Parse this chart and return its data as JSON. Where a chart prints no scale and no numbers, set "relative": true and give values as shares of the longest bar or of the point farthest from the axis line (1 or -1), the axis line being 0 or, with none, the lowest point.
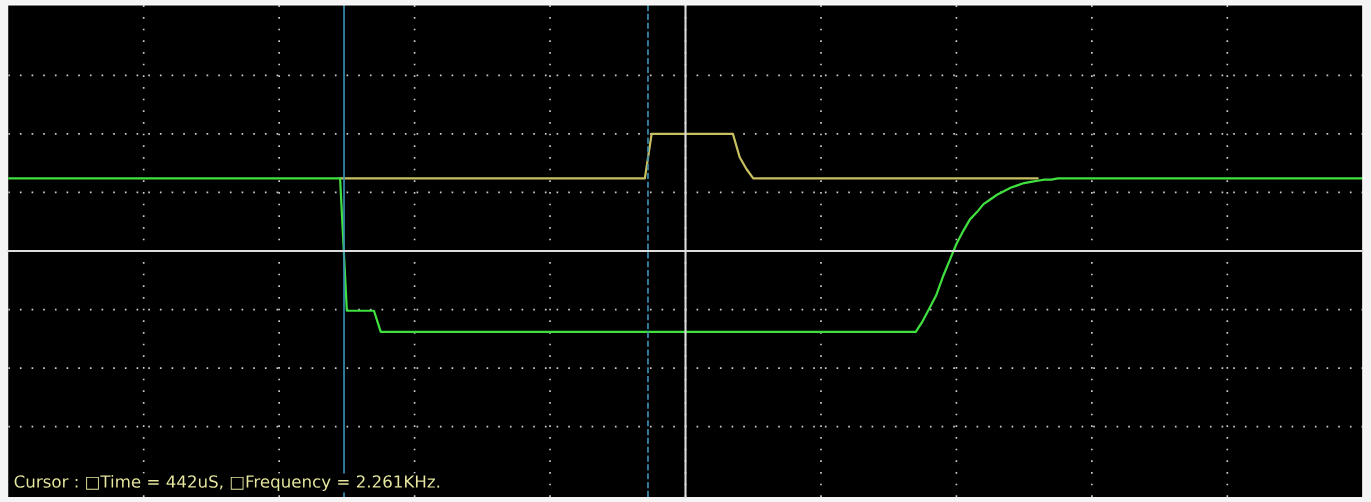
{
  "chart_data": {
    "type": "line",
    "relative": true,
    "categories": [
      null,
      null,
      null,
      null,
      null,
      null,
      null,
      null,
      null,
      null,
      null,
      null,
      null,
      null,
      null,
      null,
      null,
      null,
      null,
      null,
      null,
      null,
      null,
      null,
      null,
      null,
      null,
      null,
      null,
      null,
      null,
      null,
      null,
      null,
      null,
      null,
      null,
      null,
      null,
      null,
      null,
      null,
      null,
      null,
      null,
      null,
      null,
      null,
      null,
      null,
      null,
      null,
      null,
      null,
      null,
      null,
      null,
      null,
      null,
      null,
      null,
      null,
      null,
      null,
      null,
      null,
      null,
      null,
      null,
      null,
      null,
      null,
      null,
      null,
      null,
      null,
      null,
      null,
      null,
      null,
      null,
      null,
      null,
      null,
      null,
      null,
      null,
      null,
      null,
      null,
      null,
      null,
      null,
      null,
      null,
      null,
      null,
      null,
      null,
      null,
      null,
      null,
      null,
      null,
      null,
      null,
      null,
      null,
      null,
      null,
      null,
      null,
      null,
      null,
      null,
      null,
      null,
      null,
      null,
      null,
      null,
      null,
      null,
      null,
      null,
      null,
      null,
      null,
      null,
      null,
      null,
      null,
      null,
      null,
      null,
      null,
      null,
      null,
      null,
      null,
      null,
      null,
      null,
      null,
      null,
      null,
      null,
      null,
      null,
      null,
      null,
      null,
      null,
      null,
      null,
      null,
      null,
      null,
      null,
      null,
      null,
      null,
      null,
      null,
      null,
      null,
      null,
      null,
      null,
      null,
      null,
      null,
      null,
      null,
      null,
      null,
      null,
      null,
      null,
      null,
      null,
      null,
      null,
      null,
      null,
      null,
      null,
      null,
      null,
      null,
      null,
      null,
      null,
      null,
      null,
      null,
      null,
      null,
      null,
      null,
      null
    ],
    "grid": true,
    "marker": "none",
    "line_style": "solid",
    "series": [
      {
        "color": "#c8c060",
        "values": [
          null,
          null,
          null,
          null,
          null,
          null,
          null,
          null,
          null,
          null,
          null,
          null,
          null,
          null,
          null,
          null,
          null,
          null,
          null,
          null,
          null,
          null,
          null,
          null,
          null,
          null,
          null,
          null,
          null,
          null,
          null,
          null,
          null,
          null,
          null,
          null,
          null,
          null,
          null,
          null,
          null,
          null,
          null,
          null,
          null,
          null,
          null,
          null,
          null,
          0.62,
          0.62,
          0.62,
          0.62,
          0.62,
          0.62,
          0.62,
          0.62,
          0.62,
          0.62,
          0.62,
          0.62,
          0.62,
          0.62,
          0.62,
          0.62,
          0.62,
          0.62,
          0.62,
          0.62,
          0.62,
          0.62,
          0.62,
          0.62,
          0.62,
          0.62,
          0.62,
          0.62,
          0.62,
          0.62,
          0.62,
          0.62,
          0.62,
          0.62,
          0.62,
          0.62,
          0.62,
          0.62,
          0.62,
          0.62,
          0.62,
          0.62,
          0.62,
          0.62,
          0.62,
          0.62,
          1.0,
          1.0,
          1.0,
          1.0,
          1.0,
          1.0,
          1.0,
          1.0,
          1.0,
          1.0,
          1.0,
          1.0,
          1.0,
          0.8,
          0.7,
          0.62,
          0.62,
          0.62,
          0.62,
          0.62,
          0.62,
          0.62,
          0.62,
          0.62,
          0.62,
          0.62,
          0.62,
          0.62,
          0.62,
          0.62,
          0.62,
          0.62,
          0.62,
          0.62,
          0.62,
          0.62,
          0.62,
          0.62,
          0.62,
          0.62,
          0.62,
          0.62,
          0.62,
          0.62,
          0.62,
          0.62,
          0.62,
          0.62,
          0.62,
          0.62,
          0.62,
          0.62,
          0.62,
          0.62,
          0.62,
          0.62,
          0.62,
          0.62,
          null,
          null,
          null,
          null,
          null,
          null,
          null,
          null,
          null,
          null,
          null,
          null,
          null,
          null,
          null,
          null,
          null,
          null,
          null,
          null,
          null,
          null,
          null,
          null,
          null,
          null,
          null,
          null,
          null,
          null,
          null,
          null,
          null,
          null,
          null,
          null,
          null,
          null,
          null,
          null,
          null,
          null,
          null,
          null,
          null,
          null,
          null,
          null
        ]
      },
      {
        "color": "#40e040",
        "values": [
          0.62,
          0.62,
          0.62,
          0.62,
          0.62,
          0.62,
          0.62,
          0.62,
          0.62,
          0.62,
          0.62,
          0.62,
          0.62,
          0.62,
          0.62,
          0.62,
          0.62,
          0.62,
          0.62,
          0.62,
          0.62,
          0.62,
          0.62,
          0.62,
          0.62,
          0.62,
          0.62,
          0.62,
          0.62,
          0.62,
          0.62,
          0.62,
          0.62,
          0.62,
          0.62,
          0.62,
          0.62,
          0.62,
          0.62,
          0.62,
          0.62,
          0.62,
          0.62,
          0.62,
          0.62,
          0.62,
          0.62,
          0.62,
          0.62,
          0.62,
          -0.51,
          -0.51,
          -0.51,
          -0.51,
          -0.51,
          -0.69,
          -0.69,
          -0.69,
          -0.69,
          -0.69,
          -0.69,
          -0.69,
          -0.69,
          -0.69,
          -0.69,
          -0.69,
          -0.69,
          -0.69,
          -0.69,
          -0.69,
          -0.69,
          -0.69,
          -0.69,
          -0.69,
          -0.69,
          -0.69,
          -0.69,
          -0.69,
          -0.69,
          -0.69,
          -0.69,
          -0.69,
          -0.69,
          -0.69,
          -0.69,
          -0.69,
          -0.69,
          -0.69,
          -0.69,
          -0.69,
          -0.69,
          -0.69,
          -0.69,
          -0.69,
          -0.69,
          -0.69,
          -0.69,
          -0.69,
          -0.69,
          -0.69,
          -0.69,
          -0.69,
          -0.69,
          -0.69,
          -0.69,
          -0.69,
          -0.69,
          -0.69,
          -0.69,
          -0.69,
          -0.69,
          -0.69,
          -0.69,
          -0.69,
          -0.69,
          -0.69,
          -0.69,
          -0.69,
          -0.69,
          -0.69,
          -0.69,
          -0.69,
          -0.69,
          -0.69,
          -0.69,
          -0.69,
          -0.69,
          -0.69,
          -0.69,
          -0.69,
          -0.69,
          -0.69,
          -0.69,
          -0.69,
          -0.69,
          -0.6,
          -0.49,
          -0.38,
          -0.22,
          -0.08,
          0.06,
          0.17,
          0.27,
          0.33,
          0.4,
          0.44,
          0.48,
          0.51,
          0.54,
          0.56,
          0.58,
          0.59,
          0.6,
          0.61,
          0.61,
          0.62,
          0.62,
          0.62,
          0.62,
          0.62,
          0.62,
          0.62,
          0.62,
          0.62,
          0.62,
          0.62,
          0.62,
          0.62,
          0.62,
          0.62,
          0.62,
          0.62,
          0.62,
          0.62,
          0.62,
          0.62,
          0.62,
          0.62,
          0.62,
          0.62,
          0.62,
          0.62,
          0.62,
          0.62,
          0.62,
          0.62,
          0.62,
          0.62,
          0.62,
          0.62,
          0.62,
          0.62,
          0.62,
          0.62,
          0.62,
          0.62,
          0.62,
          0.62,
          0.62,
          0.62,
          0.62
        ]
      }
    ],
    "annotations": [
      "Cursor : □Time = 442uS, □Frequency = 2.261KHz."
    ]
  }
}
